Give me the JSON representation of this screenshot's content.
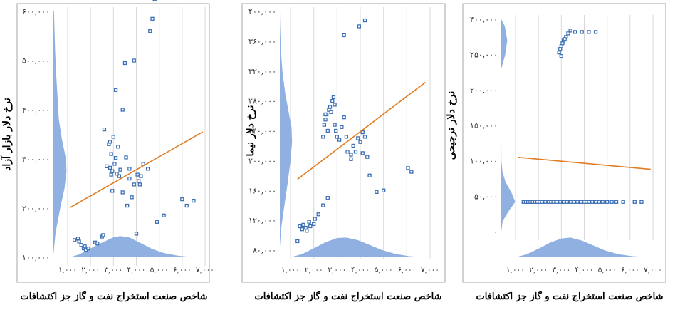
{
  "chart_data": [
    {
      "type": "scatter",
      "ylabel": "نرخ دلار بازار آزاد",
      "xlabel": "شاخص صنعت استخراج نفت و گاز جز اکتشافات",
      "ylim": [
        100000,
        600000
      ],
      "xlim": [
        1000,
        7000
      ],
      "yticks": [
        "۱۰۰,۰۰۰",
        "۲۰۰,۰۰۰",
        "۳۰۰,۰۰۰",
        "۴۰۰,۰۰۰",
        "۵۰۰,۰۰۰",
        "۶۰۰,۰۰۰"
      ],
      "ytick_values": [
        100000,
        200000,
        300000,
        400000,
        500000,
        600000
      ],
      "xticks": [
        "۱,۰۰۰",
        "۲,۰۰۰",
        "۳,۰۰۰",
        "۴,۰۰۰",
        "۵,۰۰۰",
        "۶,۰۰۰",
        "۷,۰۰۰"
      ],
      "xtick_values": [
        1000,
        2000,
        3000,
        4000,
        5000,
        6000,
        7000
      ],
      "trendline": [
        [
          1100,
          201000
        ],
        [
          6900,
          355000
        ]
      ],
      "x_density": [
        [
          1100,
          0
        ],
        [
          1500,
          0.12
        ],
        [
          2000,
          0.38
        ],
        [
          2500,
          0.62
        ],
        [
          3000,
          0.85
        ],
        [
          3300,
          0.9
        ],
        [
          3700,
          0.84
        ],
        [
          4200,
          0.6
        ],
        [
          4700,
          0.35
        ],
        [
          5200,
          0.18
        ],
        [
          5800,
          0.07
        ],
        [
          6300,
          0.02
        ],
        [
          6800,
          0
        ]
      ],
      "y_density": [
        [
          105000,
          0
        ],
        [
          150000,
          0.15
        ],
        [
          200000,
          0.48
        ],
        [
          240000,
          0.78
        ],
        [
          275000,
          0.92
        ],
        [
          300000,
          0.88
        ],
        [
          340000,
          0.6
        ],
        [
          380000,
          0.38
        ],
        [
          420000,
          0.3
        ],
        [
          470000,
          0.2
        ],
        [
          520000,
          0.12
        ],
        [
          560000,
          0.08
        ],
        [
          600000,
          0.04
        ]
      ],
      "points": [
        [
          1300,
          135000
        ],
        [
          1450,
          138000
        ],
        [
          1500,
          132000
        ],
        [
          1600,
          125000
        ],
        [
          1700,
          118000
        ],
        [
          1750,
          122000
        ],
        [
          1800,
          115000
        ],
        [
          1900,
          118000
        ],
        [
          2200,
          130000
        ],
        [
          2300,
          128000
        ],
        [
          2500,
          142000
        ],
        [
          2550,
          145000
        ],
        [
          2800,
          330000
        ],
        [
          2850,
          282000
        ],
        [
          2900,
          310000
        ],
        [
          2950,
          275000
        ],
        [
          3000,
          345000
        ],
        [
          2900,
          268000
        ],
        [
          3050,
          290000
        ],
        [
          3100,
          302000
        ],
        [
          3200,
          325000
        ],
        [
          3300,
          278000
        ],
        [
          3250,
          265000
        ],
        [
          2950,
          235000
        ],
        [
          3400,
          400000
        ],
        [
          3500,
          495000
        ],
        [
          3600,
          205000
        ],
        [
          3700,
          260000
        ],
        [
          3800,
          222000
        ],
        [
          3900,
          248000
        ],
        [
          4100,
          255000
        ],
        [
          4150,
          248000
        ],
        [
          4050,
          268000
        ],
        [
          4200,
          265000
        ],
        [
          4300,
          290000
        ],
        [
          4500,
          280000
        ],
        [
          4600,
          560000
        ],
        [
          4700,
          585000
        ],
        [
          4900,
          172000
        ],
        [
          5200,
          185000
        ],
        [
          6200,
          205000
        ],
        [
          6500,
          215000
        ],
        [
          4000,
          148000
        ],
        [
          3700,
          280000
        ],
        [
          3100,
          440000
        ],
        [
          3150,
          270000
        ],
        [
          2700,
          285000
        ],
        [
          4800,
          625000
        ],
        [
          3550,
          303000
        ],
        [
          2600,
          360000
        ],
        [
          2850,
          335000
        ],
        [
          3900,
          500000
        ],
        [
          6000,
          218000
        ],
        [
          3400,
          232000
        ]
      ]
    },
    {
      "type": "scatter",
      "ylabel": "نرخ دلار نیما",
      "xlabel": "شاخص صنعت استخراج نفت و گاز جز اکتشافات",
      "ylim": [
        80000,
        400000
      ],
      "xlim": [
        1000,
        7000
      ],
      "yticks": [
        "۸۰,۰۰۰",
        "۱۲۰,۰۰۰",
        "۱۶۰,۰۰۰",
        "۲۰۰,۰۰۰",
        "۲۴۰,۰۰۰",
        "۲۸۰,۰۰۰",
        "۳۲۰,۰۰۰",
        "۳۶۰,۰۰۰",
        "۴۰۰,۰۰۰"
      ],
      "ytick_values": [
        80000,
        120000,
        160000,
        200000,
        240000,
        280000,
        320000,
        360000,
        400000
      ],
      "xticks": [
        "۱,۰۰۰",
        "۲,۰۰۰",
        "۳,۰۰۰",
        "۴,۰۰۰",
        "۵,۰۰۰",
        "۶,۰۰۰",
        "۷,۰۰۰"
      ],
      "xtick_values": [
        1000,
        2000,
        3000,
        4000,
        5000,
        6000,
        7000
      ],
      "trendline": [
        [
          1300,
          175000
        ],
        [
          6800,
          305000
        ]
      ],
      "x_density": [
        [
          1000,
          0
        ],
        [
          1500,
          0.15
        ],
        [
          2000,
          0.42
        ],
        [
          2500,
          0.7
        ],
        [
          3000,
          0.9
        ],
        [
          3400,
          0.92
        ],
        [
          3900,
          0.8
        ],
        [
          4400,
          0.58
        ],
        [
          4900,
          0.35
        ],
        [
          5500,
          0.16
        ],
        [
          6100,
          0.05
        ],
        [
          6700,
          0.01
        ],
        [
          7000,
          0
        ]
      ],
      "y_density": [
        [
          85000,
          0
        ],
        [
          110000,
          0.1
        ],
        [
          140000,
          0.32
        ],
        [
          170000,
          0.55
        ],
        [
          200000,
          0.75
        ],
        [
          225000,
          0.86
        ],
        [
          245000,
          0.82
        ],
        [
          265000,
          0.62
        ],
        [
          290000,
          0.38
        ],
        [
          320000,
          0.18
        ],
        [
          350000,
          0.07
        ],
        [
          380000,
          0.02
        ],
        [
          400000,
          0
        ]
      ],
      "points": [
        [
          1300,
          92000
        ],
        [
          1400,
          112000
        ],
        [
          1500,
          108000
        ],
        [
          1550,
          114000
        ],
        [
          1650,
          110000
        ],
        [
          1700,
          106000
        ],
        [
          1800,
          118000
        ],
        [
          1850,
          112000
        ],
        [
          2000,
          115000
        ],
        [
          2050,
          122000
        ],
        [
          2200,
          128000
        ],
        [
          2400,
          140000
        ],
        [
          2600,
          150000
        ],
        [
          2400,
          232000
        ],
        [
          2450,
          248000
        ],
        [
          2500,
          255000
        ],
        [
          2550,
          262000
        ],
        [
          2600,
          240000
        ],
        [
          2650,
          268000
        ],
        [
          2700,
          272000
        ],
        [
          2800,
          280000
        ],
        [
          2850,
          285000
        ],
        [
          2900,
          248000
        ],
        [
          2950,
          240000
        ],
        [
          3000,
          232000
        ],
        [
          3100,
          228000
        ],
        [
          3200,
          245000
        ],
        [
          3300,
          258000
        ],
        [
          3400,
          232000
        ],
        [
          3450,
          212000
        ],
        [
          3600,
          208000
        ],
        [
          3700,
          220000
        ],
        [
          3800,
          212000
        ],
        [
          3900,
          230000
        ],
        [
          4000,
          225000
        ],
        [
          4100,
          238000
        ],
        [
          4200,
          232000
        ],
        [
          4300,
          205000
        ],
        [
          4400,
          180000
        ],
        [
          4700,
          158000
        ],
        [
          5000,
          160000
        ],
        [
          3300,
          368000
        ],
        [
          3950,
          380000
        ],
        [
          4200,
          388000
        ],
        [
          6050,
          190000
        ],
        [
          6200,
          185000
        ],
        [
          4100,
          210000
        ],
        [
          3600,
          202000
        ],
        [
          2750,
          265000
        ],
        [
          2900,
          275000
        ],
        [
          2500,
          262000
        ]
      ]
    },
    {
      "type": "scatter",
      "ylabel": "نرخ دلار ترجیحی",
      "xlabel": "شاخص صنعت استخراج نفت و گاز جز اکتشافات",
      "ylim": [
        0,
        300000
      ],
      "xlim": [
        1000,
        7000
      ],
      "yticks": [
        "۰",
        "۵۰,۰۰۰",
        "۱۰۰,۰۰۰",
        "۱۵۰,۰۰۰",
        "۲۰۰,۰۰۰",
        "۲۵۰,۰۰۰",
        "۳۰۰,۰۰۰"
      ],
      "ytick_values": [
        0,
        50000,
        100000,
        150000,
        200000,
        250000,
        300000
      ],
      "xticks": [
        "۱,۰۰۰",
        "۲,۰۰۰",
        "۳,۰۰۰",
        "۴,۰۰۰",
        "۵,۰۰۰",
        "۶,۰۰۰",
        "۷,۰۰۰"
      ],
      "xtick_values": [
        1000,
        2000,
        3000,
        4000,
        5000,
        6000,
        7000
      ],
      "trendline": [
        [
          1100,
          105000
        ],
        [
          6900,
          88000
        ]
      ],
      "x_density": [
        [
          1000,
          0
        ],
        [
          1500,
          0.14
        ],
        [
          2000,
          0.4
        ],
        [
          2500,
          0.68
        ],
        [
          3000,
          0.88
        ],
        [
          3400,
          0.92
        ],
        [
          3900,
          0.78
        ],
        [
          4400,
          0.55
        ],
        [
          4900,
          0.32
        ],
        [
          5500,
          0.14
        ],
        [
          6100,
          0.05
        ],
        [
          6700,
          0.01
        ],
        [
          7000,
          0
        ]
      ],
      "y_density": [
        [
          0,
          0
        ],
        [
          15000,
          0.1
        ],
        [
          30000,
          0.55
        ],
        [
          42000,
          0.98
        ],
        [
          55000,
          0.72
        ],
        [
          70000,
          0.3
        ],
        [
          85000,
          0.08
        ],
        [
          100000,
          0.01
        ],
        [
          130000,
          0
        ],
        [
          230000,
          0
        ],
        [
          250000,
          0.28
        ],
        [
          270000,
          0.42
        ],
        [
          290000,
          0.25
        ],
        [
          300000,
          0
        ]
      ],
      "points": [
        [
          1350,
          42000
        ],
        [
          1450,
          42000
        ],
        [
          1550,
          42000
        ],
        [
          1650,
          42000
        ],
        [
          1750,
          42000
        ],
        [
          1850,
          42000
        ],
        [
          1950,
          42000
        ],
        [
          2050,
          42000
        ],
        [
          2150,
          42000
        ],
        [
          2300,
          42000
        ],
        [
          2450,
          42000
        ],
        [
          2550,
          42000
        ],
        [
          2650,
          42000
        ],
        [
          2800,
          42000
        ],
        [
          2950,
          42000
        ],
        [
          3100,
          42000
        ],
        [
          3250,
          42000
        ],
        [
          3400,
          42000
        ],
        [
          3550,
          42000
        ],
        [
          3700,
          42000
        ],
        [
          3850,
          42000
        ],
        [
          4000,
          42000
        ],
        [
          4100,
          42000
        ],
        [
          4200,
          42000
        ],
        [
          4350,
          42000
        ],
        [
          4500,
          42000
        ],
        [
          4650,
          42000
        ],
        [
          4800,
          42000
        ],
        [
          5000,
          42000
        ],
        [
          5200,
          42000
        ],
        [
          5400,
          42000
        ],
        [
          5700,
          42000
        ],
        [
          6200,
          42000
        ],
        [
          6500,
          42000
        ],
        [
          2900,
          253000
        ],
        [
          2950,
          258000
        ],
        [
          3000,
          262000
        ],
        [
          3050,
          266000
        ],
        [
          3100,
          270000
        ],
        [
          3200,
          275000
        ],
        [
          3300,
          280000
        ],
        [
          3400,
          284000
        ],
        [
          3600,
          282000
        ],
        [
          3900,
          282000
        ],
        [
          4200,
          282000
        ],
        [
          4500,
          282000
        ],
        [
          3000,
          248000
        ],
        [
          3150,
          272000
        ]
      ]
    }
  ]
}
